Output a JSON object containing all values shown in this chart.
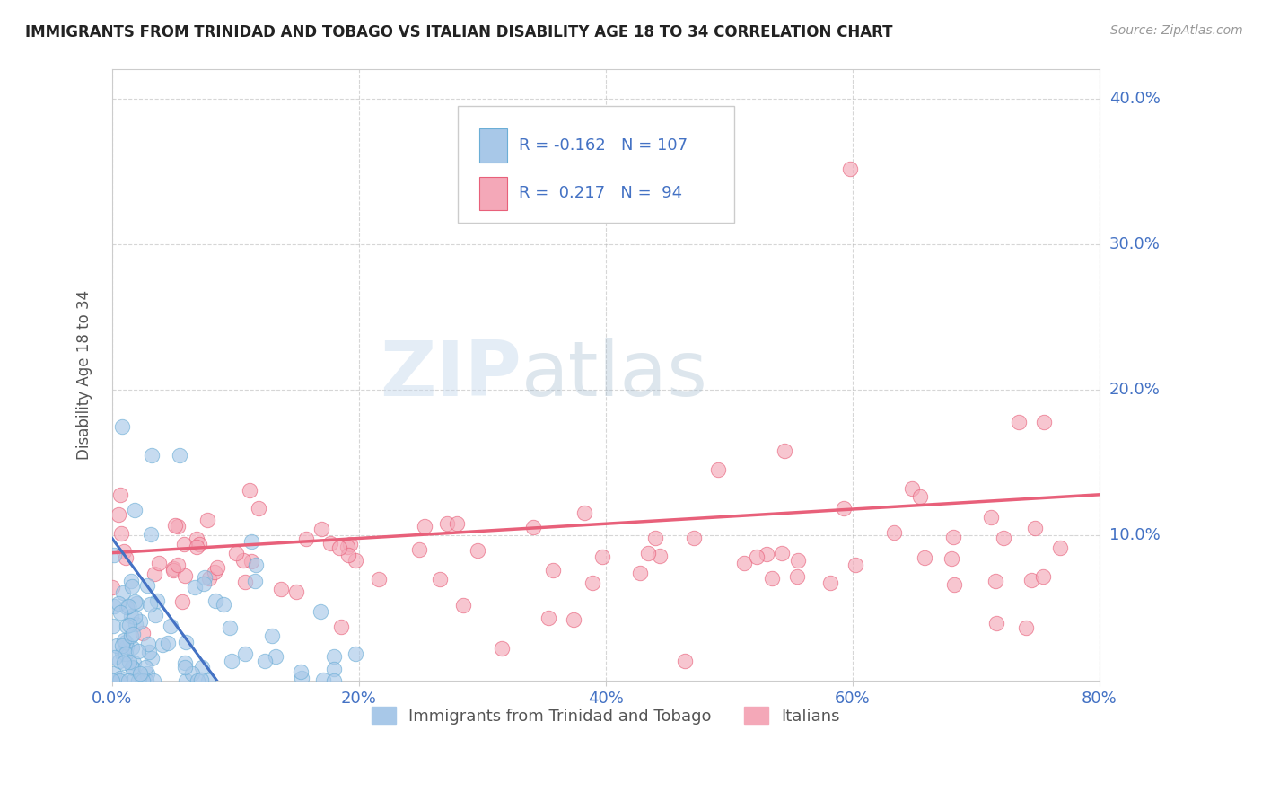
{
  "title": "IMMIGRANTS FROM TRINIDAD AND TOBAGO VS ITALIAN DISABILITY AGE 18 TO 34 CORRELATION CHART",
  "source": "Source: ZipAtlas.com",
  "ylabel": "Disability Age 18 to 34",
  "legend_label_1": "Immigrants from Trinidad and Tobago",
  "legend_label_2": "Italians",
  "r1": -0.162,
  "n1": 107,
  "r2": 0.217,
  "n2": 94,
  "color1": "#A8C8E8",
  "color2": "#F4A8B8",
  "color1_edge": "#6BAED6",
  "color2_edge": "#E8607A",
  "trend1_color": "#4472C4",
  "trend2_color": "#E8607A",
  "xlim": [
    0.0,
    0.8
  ],
  "ylim": [
    0.0,
    0.42
  ],
  "xticks": [
    0.0,
    0.2,
    0.4,
    0.6,
    0.8
  ],
  "yticks": [
    0.1,
    0.2,
    0.3,
    0.4
  ],
  "watermark_zip": "ZIP",
  "watermark_atlas": "atlas",
  "background_color": "#ffffff",
  "grid_color": "#bbbbbb"
}
